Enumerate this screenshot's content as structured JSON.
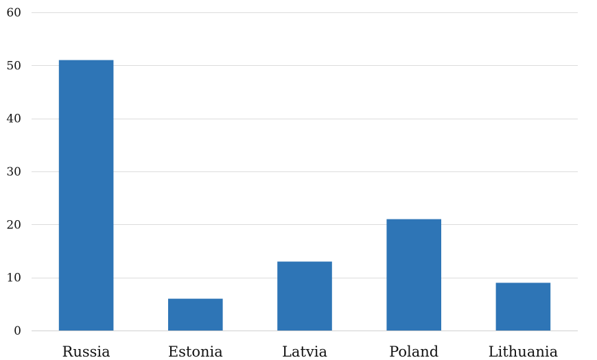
{
  "chart_data": {
    "type": "bar",
    "title": "",
    "xlabel": "",
    "ylabel": "",
    "categories": [
      "Russia",
      "Estonia",
      "Latvia",
      "Poland",
      "Lithuania"
    ],
    "values": [
      51,
      6,
      13,
      21,
      9
    ],
    "ylim": [
      0,
      60
    ],
    "yticks": [
      0,
      10,
      20,
      30,
      40,
      50,
      60
    ],
    "grid": true,
    "legend": "none",
    "bar_color": "#2e75b6"
  }
}
